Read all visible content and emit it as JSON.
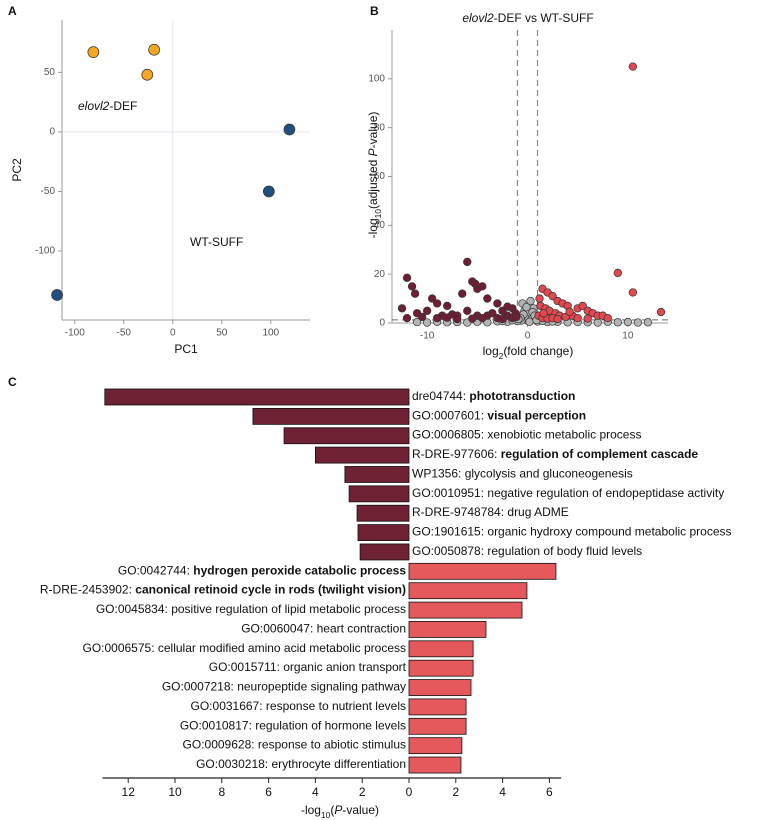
{
  "chart_data": [
    {
      "type": "scatter",
      "panel": "A",
      "xlabel": [
        {
          "text": "PC1"
        }
      ],
      "ylabel": [
        {
          "text": "PC2"
        }
      ],
      "xlim": [
        -113,
        140
      ],
      "ylim": [
        -158,
        94
      ],
      "xticks": [
        -100,
        -50,
        0,
        50,
        100
      ],
      "yticks": [
        -100,
        -50,
        0,
        50
      ],
      "zero_lines": true,
      "series": [
        {
          "name": [
            {
              "text": "elovl2",
              "italic": true
            },
            {
              "text": "-DEF"
            }
          ],
          "color": "#f5a623",
          "label_color": "#7d5a1e",
          "x": [
            -81,
            -19,
            -26
          ],
          "y": [
            67,
            69,
            48
          ]
        },
        {
          "name": [
            {
              "text": "WT-SUFF"
            }
          ],
          "color": "#1f4e80",
          "label_color": "#2c5a8c",
          "x": [
            119,
            98,
            -118
          ],
          "y": [
            2,
            -50,
            -137
          ]
        }
      ]
    },
    {
      "type": "scatter",
      "panel": "B",
      "title": [
        {
          "text": "elovl2",
          "italic": true
        },
        {
          "text": "-DEF vs WT-SUFF"
        }
      ],
      "xlabel": [
        {
          "text": "log"
        },
        {
          "text": "2",
          "sub": true
        },
        {
          "text": "(fold change)"
        }
      ],
      "ylabel": [
        {
          "text": "-log"
        },
        {
          "text": "10",
          "sub": true
        },
        {
          "text": "(adjusted "
        },
        {
          "text": "P",
          "italic": true
        },
        {
          "text": "-value)"
        }
      ],
      "xlim": [
        -13.5,
        14
      ],
      "ylim": [
        0,
        120
      ],
      "xticks": [
        -10,
        0,
        10
      ],
      "yticks": [
        0,
        20,
        40,
        60,
        80,
        100
      ],
      "thresholds": {
        "x": [
          -1,
          1
        ],
        "y": 1.3
      },
      "series": [
        {
          "color": "#b3b3b3",
          "x": [
            -0.5,
            0.3,
            0.6,
            -0.3,
            0.1,
            -0.8,
            0.8,
            0,
            -0.2,
            0.4,
            -0.6,
            0.2,
            -1,
            1,
            -2,
            2,
            -3,
            3,
            -4,
            4,
            -5,
            5,
            -6,
            6,
            -7,
            -8,
            -9,
            -10,
            -11,
            7,
            8,
            9,
            10,
            11,
            12,
            -0.4,
            0.5,
            -0.1,
            0.7,
            -0.7,
            1.5,
            -1.5,
            2.5,
            -2.5,
            0.9,
            -0.9
          ],
          "y": [
            8,
            9,
            6,
            5,
            4,
            3,
            2.5,
            1,
            2,
            1.5,
            1,
            0.5,
            0.8,
            0.6,
            0.5,
            0.4,
            0.7,
            0.5,
            0.3,
            0.3,
            0.5,
            0.4,
            0.2,
            0.3,
            0.4,
            0.3,
            0.5,
            0.2,
            0.4,
            0.2,
            0.5,
            0.3,
            0.4,
            0.2,
            0.3,
            3.5,
            4.5,
            6.5,
            3,
            2,
            0.9,
            1.1,
            0.6,
            0.8,
            1.2,
            1.6
          ]
        },
        {
          "color": "#6e1f33",
          "x": [
            -12,
            -11.5,
            -11.2,
            -10,
            -9.5,
            -9,
            -8,
            -7.5,
            -7,
            -6,
            -5.5,
            -5,
            -4.5,
            -4,
            -3,
            -2.5,
            -2,
            -1.5,
            -1.2,
            -3.5,
            -4,
            -5,
            -6,
            -6.5,
            -8.5,
            -9,
            -10.5,
            -11,
            -12,
            -2,
            -1.5,
            -3,
            -5.5,
            -7,
            -8,
            -1.1,
            -2.5,
            -4.5,
            -12.5,
            -5.2
          ],
          "y": [
            18.5,
            15,
            12,
            5,
            10,
            8,
            7,
            3.5,
            3,
            25,
            17,
            14,
            15,
            10,
            8,
            5,
            6.7,
            6,
            4,
            4,
            3,
            3,
            5,
            12,
            3,
            2,
            2.5,
            4,
            2,
            3,
            2,
            2,
            1.8,
            1.6,
            2.2,
            2.5,
            1.6,
            2,
            6,
            16
          ]
        },
        {
          "color": "#e3474f",
          "x": [
            10.5,
            9,
            10.5,
            13.3,
            1.5,
            2,
            1.2,
            2.5,
            3,
            3.5,
            4,
            5,
            5.5,
            6,
            6.5,
            7,
            7.5,
            8,
            1.3,
            1.8,
            2.2,
            2.8,
            3.2,
            4.5,
            1.1,
            1.5,
            2,
            2.5,
            3,
            3.8,
            5,
            6,
            4.2,
            1.6
          ],
          "y": [
            105,
            20.5,
            12.5,
            4.5,
            14,
            12.5,
            10,
            11,
            9,
            8,
            7,
            6,
            7,
            5,
            4,
            3,
            3,
            2,
            7,
            6,
            5,
            4,
            3,
            3,
            3,
            2,
            1.8,
            2,
            1.6,
            2.5,
            2,
            1.8,
            4.6,
            4
          ]
        }
      ]
    },
    {
      "type": "diverging_bar",
      "panel": "C",
      "xlabel": [
        {
          "text": "-log"
        },
        {
          "text": "10",
          "sub": true
        },
        {
          "text": "("
        },
        {
          "text": "P",
          "italic": true
        },
        {
          "text": "-value)"
        }
      ],
      "xlim": [
        13.1,
        6.5
      ],
      "xticks_left": [
        12,
        10,
        8,
        6,
        4,
        2,
        0
      ],
      "xticks_right": [
        2,
        4,
        6
      ],
      "series": [
        {
          "side": "left",
          "color": "#6e2233",
          "categories": [
            [
              {
                "text": "dre04744: "
              },
              {
                "text": "phototransduction",
                "bold": true
              }
            ],
            [
              {
                "text": "GO:0007601: "
              },
              {
                "text": "visual perception",
                "bold": true
              }
            ],
            [
              {
                "text": "GO:0006805: "
              },
              {
                "text": "xenobiotic metabolic process"
              }
            ],
            [
              {
                "text": "R-DRE-977606: "
              },
              {
                "text": "regulation of complement cascade",
                "bold": true
              }
            ],
            [
              {
                "text": "WP1356: "
              },
              {
                "text": "glycolysis and gluconeogenesis"
              }
            ],
            [
              {
                "text": "GO:0010951: "
              },
              {
                "text": "negative regulation of endopeptidase activity"
              }
            ],
            [
              {
                "text": "R-DRE-9748784: "
              },
              {
                "text": "drug ADME"
              }
            ],
            [
              {
                "text": "GO:1901615: "
              },
              {
                "text": "organic hydroxy compound metabolic process"
              }
            ],
            [
              {
                "text": "GO:0050878: "
              },
              {
                "text": "regulation of body fluid levels"
              }
            ]
          ],
          "values": [
            13.0,
            6.67,
            5.34,
            4.0,
            2.74,
            2.56,
            2.22,
            2.18,
            2.09
          ]
        },
        {
          "side": "right",
          "color": "#e5585c",
          "categories": [
            [
              {
                "text": "GO:0042744: "
              },
              {
                "text": "hydrogen peroxide catabolic process",
                "bold": true
              }
            ],
            [
              {
                "text": "R-DRE-2453902: "
              },
              {
                "text": "canonical retinoid cycle in rods (twilight vision)",
                "bold": true
              }
            ],
            [
              {
                "text": "GO:0045834: "
              },
              {
                "text": "positive regulation of lipid metabolic process"
              }
            ],
            [
              {
                "text": "GO:0060047: "
              },
              {
                "text": "heart contraction"
              }
            ],
            [
              {
                "text": "GO:0006575: "
              },
              {
                "text": "cellular modified amino acid metabolic process"
              }
            ],
            [
              {
                "text": "GO:0015711: "
              },
              {
                "text": "organic anion transport"
              }
            ],
            [
              {
                "text": "GO:0007218: "
              },
              {
                "text": "neuropeptide signaling pathway"
              }
            ],
            [
              {
                "text": "GO:0031667: "
              },
              {
                "text": "response to nutrient levels"
              }
            ],
            [
              {
                "text": "GO:0010817: "
              },
              {
                "text": "regulation of hormone levels"
              }
            ],
            [
              {
                "text": "GO:0009628: "
              },
              {
                "text": "response to abiotic stimulus"
              }
            ],
            [
              {
                "text": "GO:0030218: "
              },
              {
                "text": "erythrocyte differentiation"
              }
            ]
          ],
          "values": [
            6.28,
            5.04,
            4.83,
            3.29,
            2.74,
            2.74,
            2.65,
            2.44,
            2.44,
            2.26,
            2.22
          ]
        }
      ]
    }
  ]
}
